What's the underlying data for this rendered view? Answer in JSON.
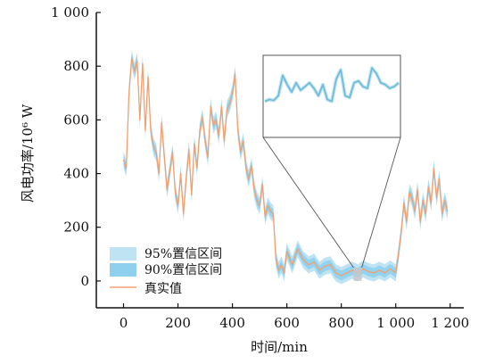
{
  "chart_data": {
    "type": "line",
    "title": "",
    "xlabel": "时间/min",
    "ylabel": "风电功率/10⁶ W",
    "xlim": [
      -100,
      1250
    ],
    "ylim": [
      -100,
      1000
    ],
    "xticks": [
      0,
      200,
      400,
      600,
      800,
      1000,
      1200
    ],
    "xtick_labels": [
      "0",
      "200",
      "400",
      "600",
      "800",
      "1 000",
      "1 200"
    ],
    "yticks": [
      0,
      200,
      400,
      600,
      800,
      1000
    ],
    "ytick_labels": [
      "0",
      "200",
      "400",
      "600",
      "800",
      "1 000"
    ],
    "legend_position": "lower-left",
    "legend": [
      "95%置信区间",
      "90%置信区间",
      "真实值"
    ],
    "colors": {
      "ci95": "#bfe3f3",
      "ci90": "#8fd0ee",
      "actual": "#f0a070",
      "axis": "#111111",
      "inset_frame": "#555555",
      "inset_line": "#6cbad6",
      "highlight": "#c8c8c8"
    },
    "inset": {
      "x_range": [
        845,
        875
      ],
      "y_range": [
        0,
        50
      ]
    },
    "series": [
      {
        "name": "真实值",
        "x": [
          0,
          10,
          20,
          30,
          40,
          50,
          60,
          70,
          80,
          90,
          100,
          110,
          120,
          130,
          140,
          150,
          160,
          170,
          180,
          190,
          200,
          210,
          220,
          230,
          240,
          250,
          260,
          270,
          280,
          290,
          300,
          310,
          320,
          330,
          340,
          350,
          360,
          370,
          380,
          390,
          400,
          410,
          420,
          430,
          440,
          450,
          460,
          470,
          480,
          490,
          500,
          510,
          520,
          530,
          540,
          550,
          560,
          570,
          580,
          590,
          600,
          620,
          640,
          660,
          680,
          700,
          720,
          740,
          760,
          780,
          800,
          820,
          840,
          860,
          880,
          900,
          920,
          940,
          960,
          980,
          1000,
          1010,
          1020,
          1030,
          1040,
          1050,
          1060,
          1070,
          1080,
          1090,
          1100,
          1110,
          1120,
          1130,
          1140,
          1150,
          1160,
          1170,
          1180,
          1190
        ],
        "values": [
          450,
          420,
          700,
          830,
          780,
          820,
          600,
          810,
          560,
          760,
          560,
          500,
          480,
          400,
          590,
          460,
          340,
          410,
          480,
          330,
          280,
          400,
          250,
          380,
          490,
          320,
          510,
          420,
          560,
          610,
          520,
          460,
          650,
          580,
          600,
          540,
          650,
          520,
          640,
          660,
          700,
          770,
          560,
          480,
          520,
          420,
          380,
          430,
          340,
          300,
          280,
          360,
          240,
          280,
          260,
          250,
          80,
          40,
          60,
          30,
          110,
          60,
          120,
          80,
          60,
          70,
          40,
          55,
          60,
          30,
          20,
          30,
          40,
          30,
          45,
          35,
          30,
          40,
          30,
          45,
          30,
          100,
          180,
          290,
          220,
          330,
          310,
          260,
          340,
          220,
          300,
          250,
          350,
          290,
          420,
          310,
          380,
          250,
          300,
          260
        ]
      },
      {
        "name": "inset",
        "x": [
          845,
          846,
          847,
          848,
          849,
          850,
          851,
          852,
          853,
          854,
          855,
          856,
          857,
          858,
          859,
          860,
          861,
          862,
          863,
          864,
          865,
          866,
          867,
          868,
          869,
          870,
          871,
          872,
          873,
          874,
          875
        ],
        "values": [
          10,
          12,
          11,
          16,
          38,
          28,
          20,
          30,
          22,
          26,
          30,
          24,
          16,
          28,
          12,
          10,
          34,
          44,
          16,
          14,
          30,
          32,
          26,
          24,
          46,
          40,
          30,
          28,
          24,
          26,
          30
        ]
      }
    ]
  }
}
